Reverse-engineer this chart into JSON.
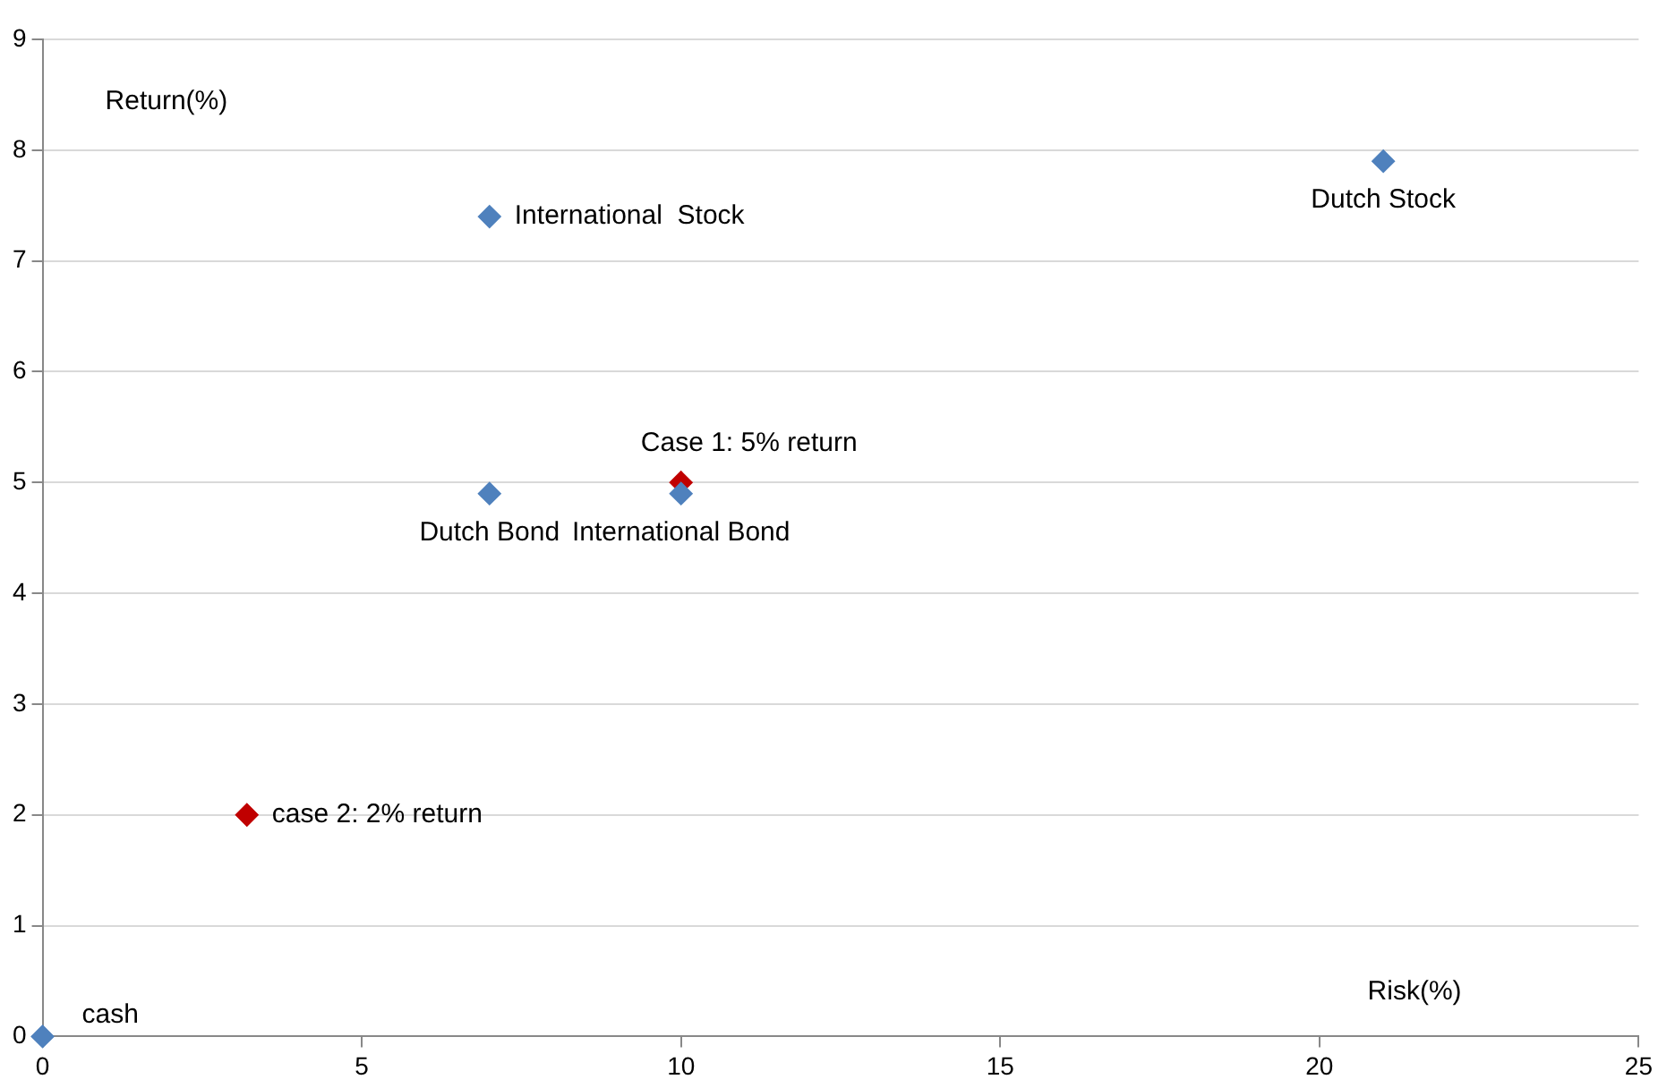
{
  "chart_data": {
    "type": "scatter",
    "xlabel": "Risk(%)",
    "ylabel": "Return(%)",
    "series": [
      {
        "color": "#4f81bd",
        "x": [
          0,
          7,
          7,
          10,
          21
        ],
        "values": [
          0,
          4.9,
          7.4,
          4.9,
          7.9
        ]
      },
      {
        "color": "#c00000",
        "x": [
          3.2,
          10
        ],
        "values": [
          2,
          5
        ]
      }
    ],
    "xlim": [
      0,
      25
    ],
    "xticks": [
      0,
      5,
      10,
      15,
      20,
      25
    ],
    "ylim": [
      0,
      9
    ],
    "yticks": [
      0,
      1,
      2,
      3,
      4,
      5,
      6,
      7,
      8,
      9
    ],
    "grid": "y",
    "legend": false,
    "marker": "diamond",
    "annotations": [
      {
        "text": "cash",
        "x": 0,
        "y": 0
      },
      {
        "text": "Dutch Bond",
        "x": 7,
        "y": 4.9
      },
      {
        "text": "International  Stock",
        "x": 7,
        "y": 7.4
      },
      {
        "text": "International Bond",
        "x": 10,
        "y": 4.9
      },
      {
        "text": "Dutch Stock",
        "x": 21,
        "y": 7.9
      },
      {
        "text": "case 2: 2% return",
        "x": 3.2,
        "y": 2
      },
      {
        "text": "Case 1: 5% return",
        "x": 10,
        "y": 5
      }
    ]
  }
}
